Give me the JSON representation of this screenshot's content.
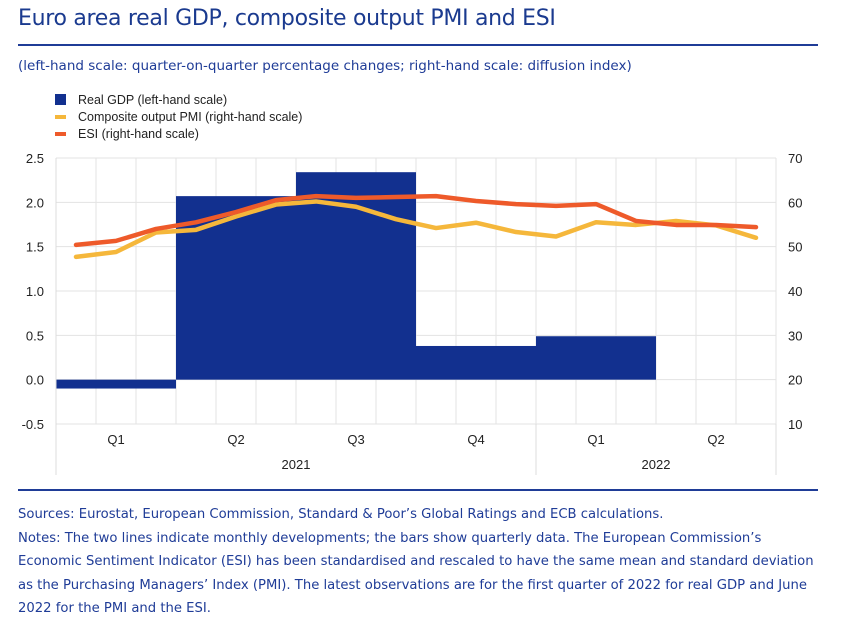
{
  "header": {
    "title": "Euro area real GDP, composite output PMI and ESI",
    "subtitle": "(left-hand scale: quarter-on-quarter percentage changes; right-hand scale: diffusion index)"
  },
  "legend": [
    {
      "label": "Real GDP (left-hand scale)",
      "color": "#12308f",
      "kind": "box"
    },
    {
      "label": "Composite output PMI (right-hand scale)",
      "color": "#f5b73b",
      "kind": "line"
    },
    {
      "label": "ESI (right-hand scale)",
      "color": "#ee5a2a",
      "kind": "line"
    }
  ],
  "footer": {
    "sources": "Sources: Eurostat, European Commission, Standard & Poor’s Global Ratings and ECB calculations.",
    "notes": "Notes: The two lines indicate monthly developments; the bars show quarterly data. The European Commission’s Economic Sentiment Indicator (ESI) has been standardised and rescaled to have the same mean and standard deviation as the Purchasing Managers’ Index (PMI). The latest observations are for the first quarter of 2022 for real GDP and June 2022 for the PMI and the ESI."
  },
  "chart_data": {
    "type": "bar+line",
    "title": "Euro area real GDP, composite output PMI and ESI",
    "quarters": [
      "Q1",
      "Q2",
      "Q3",
      "Q4",
      "Q1",
      "Q2"
    ],
    "years": [
      {
        "label": "2021",
        "quarters": 4
      },
      {
        "label": "2022",
        "quarters": 2
      }
    ],
    "months": [
      "2021-01",
      "2021-02",
      "2021-03",
      "2021-04",
      "2021-05",
      "2021-06",
      "2021-07",
      "2021-08",
      "2021-09",
      "2021-10",
      "2021-11",
      "2021-12",
      "2022-01",
      "2022-02",
      "2022-03",
      "2022-04",
      "2022-05",
      "2022-06"
    ],
    "left_axis": {
      "label": "quarter-on-quarter percentage changes",
      "ylim": [
        -0.5,
        2.5
      ],
      "ticks": [
        "-0.5",
        "0.0",
        "0.5",
        "1.0",
        "1.5",
        "2.0",
        "2.5"
      ]
    },
    "right_axis": {
      "label": "diffusion index",
      "ylim": [
        10,
        70
      ],
      "ticks": [
        "10",
        "20",
        "30",
        "40",
        "50",
        "60",
        "70"
      ]
    },
    "grid": true,
    "legend_position": "top-left",
    "series": [
      {
        "name": "Real GDP (left-hand scale)",
        "type": "bar",
        "axis": "left",
        "color": "#12308f",
        "values": [
          -0.1,
          2.07,
          2.34,
          0.38,
          0.49,
          null
        ]
      },
      {
        "name": "Composite output PMI (right-hand scale)",
        "type": "line",
        "axis": "right",
        "color": "#f5b73b",
        "values": [
          47.7,
          48.8,
          53.2,
          53.8,
          56.8,
          59.5,
          60.2,
          59.0,
          56.2,
          54.2,
          55.4,
          53.3,
          52.3,
          55.5,
          54.9,
          55.8,
          54.8,
          52.0
        ]
      },
      {
        "name": "ESI (right-hand scale)",
        "type": "line",
        "axis": "right",
        "color": "#ee5a2a",
        "values": [
          50.4,
          51.3,
          54.0,
          55.5,
          57.8,
          60.5,
          61.4,
          61.0,
          61.2,
          61.4,
          60.3,
          59.6,
          59.2,
          59.6,
          55.8,
          54.9,
          54.9,
          54.4
        ]
      }
    ]
  }
}
